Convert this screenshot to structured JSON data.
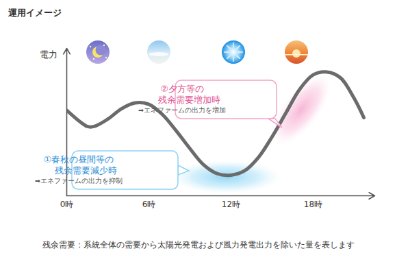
{
  "chart_data": {
    "type": "line",
    "title": "運用イメージ",
    "y_label": "電力",
    "x": [
      0,
      1,
      1.5,
      2,
      3,
      4,
      5,
      6,
      7,
      8,
      9,
      10,
      11,
      12,
      13,
      14,
      15,
      16,
      17,
      18,
      19,
      20,
      21,
      21.7
    ],
    "values": [
      58,
      50,
      47,
      47,
      52,
      59,
      63,
      62,
      55,
      44,
      32,
      21,
      15,
      14,
      17,
      26,
      40,
      56,
      72,
      82,
      84,
      80,
      66,
      53
    ],
    "color": "#6b6b6b",
    "xlim": [
      0,
      22.5
    ],
    "xticks": [
      {
        "value": 0,
        "label": "0時"
      },
      {
        "value": 6,
        "label": "6時"
      },
      {
        "value": 12,
        "label": "12時"
      },
      {
        "value": 18,
        "label": "18時"
      }
    ],
    "ylim": [
      0,
      100
    ],
    "tick_labels": "x",
    "annotations": [
      {
        "lines": [
          "①春秋の昼間等の",
          "残余需要減少時"
        ],
        "note": "➡エネファームの出力を抑制"
      },
      {
        "lines": [
          "②夕方等の",
          "残余需要増加時"
        ],
        "note": "➡エネファームの出力を増加"
      }
    ],
    "footnote": "残余需要：系統全体の需要から太陽光発電および風力発電出力を除いた量を表します"
  }
}
